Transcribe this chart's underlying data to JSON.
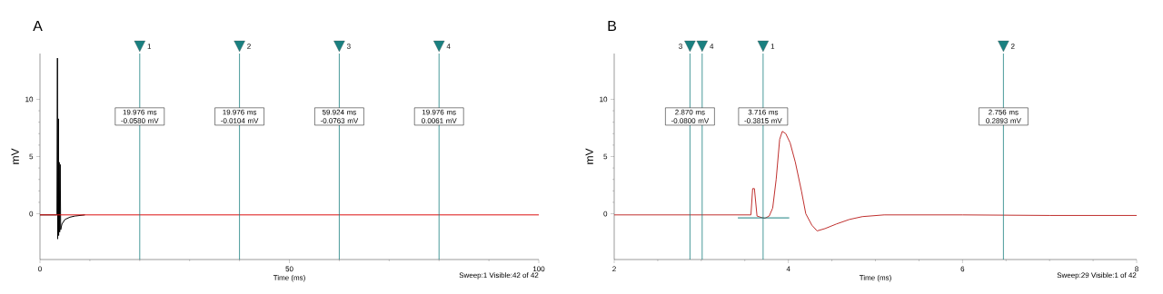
{
  "chart_data": [
    {
      "type": "line",
      "title": "A",
      "xlabel": "Time (ms)",
      "ylabel": "mV",
      "xlim": [
        0,
        100
      ],
      "xticks": [
        0,
        50,
        100
      ],
      "ylim": [
        -4,
        14
      ],
      "yticks": [
        0,
        5,
        10
      ],
      "marker": "none",
      "line_style": "solid",
      "series": [
        {
          "color": "#000000",
          "x": [
            0,
            3.4,
            3.5,
            3.55,
            3.7,
            3.75,
            3.85,
            3.95,
            4.05,
            4.15,
            4.4,
            5,
            6,
            7,
            9
          ],
          "values": [
            -0.1,
            -0.1,
            13.6,
            -2.2,
            8.3,
            -1.9,
            4.5,
            -1.6,
            4.3,
            -1.4,
            -0.9,
            -0.5,
            -0.3,
            -0.2,
            -0.1
          ]
        },
        {
          "color": "#dd1111",
          "x": [
            0,
            15,
            35,
            55,
            75,
            100
          ],
          "values": [
            -0.1,
            -0.1,
            -0.1,
            -0.1,
            -0.1,
            -0.1
          ]
        }
      ],
      "ref_lines": [
        {
          "axis": "x",
          "value": 20,
          "color": "#1a8080"
        },
        {
          "axis": "x",
          "value": 40,
          "color": "#1a8080"
        },
        {
          "axis": "x",
          "value": 60,
          "color": "#1a8080"
        },
        {
          "axis": "x",
          "value": 80,
          "color": "#1a8080"
        }
      ],
      "annotations": [
        {
          "text": "1",
          "x": 20
        },
        {
          "text": "2",
          "x": 40
        },
        {
          "text": "3",
          "x": 60
        },
        {
          "text": "4",
          "x": 80
        },
        {
          "text": "19.976 ms -0.0580 mV",
          "x": 20,
          "y": 8.5
        },
        {
          "text": "19.976 ms -0.0104 mV",
          "x": 40,
          "y": 8.5
        },
        {
          "text": "59.924 ms -0.0763 mV",
          "x": 60,
          "y": 8.5
        },
        {
          "text": "19.976 ms 0.0061 mV",
          "x": 80,
          "y": 8.5
        },
        "Sweep:1 Visible:42 of 42"
      ]
    },
    {
      "type": "line",
      "title": "B",
      "xlabel": "Time (ms)",
      "ylabel": "mV",
      "xlim": [
        2,
        8
      ],
      "xticks": [
        2,
        4,
        6,
        8
      ],
      "ylim": [
        -4,
        14
      ],
      "yticks": [
        0,
        5,
        10
      ],
      "marker": "none",
      "line_style": "solid",
      "series": [
        {
          "color": "#c0302e",
          "x": [
            2,
            3.0,
            3.57,
            3.59,
            3.61,
            3.64,
            3.7,
            3.73,
            3.78,
            3.82,
            3.86,
            3.9,
            3.93,
            3.97,
            4.02,
            4.08,
            4.15,
            4.2,
            4.27,
            4.33,
            4.42,
            4.55,
            4.7,
            4.85,
            5.1,
            6.0,
            7.0,
            8.0
          ],
          "values": [
            -0.1,
            -0.1,
            -0.1,
            2.2,
            2.2,
            -0.2,
            -0.35,
            -0.4,
            -0.2,
            0.5,
            3,
            6.5,
            7.2,
            7.0,
            6.2,
            4.5,
            2,
            0,
            -1.0,
            -1.5,
            -1.3,
            -0.9,
            -0.5,
            -0.25,
            -0.1,
            -0.1,
            -0.15,
            -0.15
          ]
        },
        {
          "color": "#1a8080",
          "x": [
            3.42,
            4.01
          ],
          "values": [
            -0.36,
            -0.36
          ]
        }
      ],
      "ref_lines": [
        {
          "axis": "x",
          "value": 2.87,
          "color": "#1a8080"
        },
        {
          "axis": "x",
          "value": 3.01,
          "color": "#1a8080"
        },
        {
          "axis": "x",
          "value": 3.71,
          "color": "#1a8080"
        },
        {
          "axis": "x",
          "value": 6.47,
          "color": "#1a8080"
        }
      ],
      "annotations": [
        {
          "text": "3",
          "x": 2.87
        },
        {
          "text": "4",
          "x": 3.01
        },
        {
          "text": "1",
          "x": 3.71
        },
        {
          "text": "2",
          "x": 6.47
        },
        {
          "text": "2.870 ms -0.0800 mV",
          "x": 2.87,
          "y": 8.5
        },
        {
          "text": "3.716 ms -0.3815 mV",
          "x": 3.71,
          "y": 8.5
        },
        {
          "text": "2.756 ms 0.2893 mV",
          "x": 6.47,
          "y": 8.5
        },
        "Sweep:29 Visible:1 of 42"
      ]
    }
  ]
}
